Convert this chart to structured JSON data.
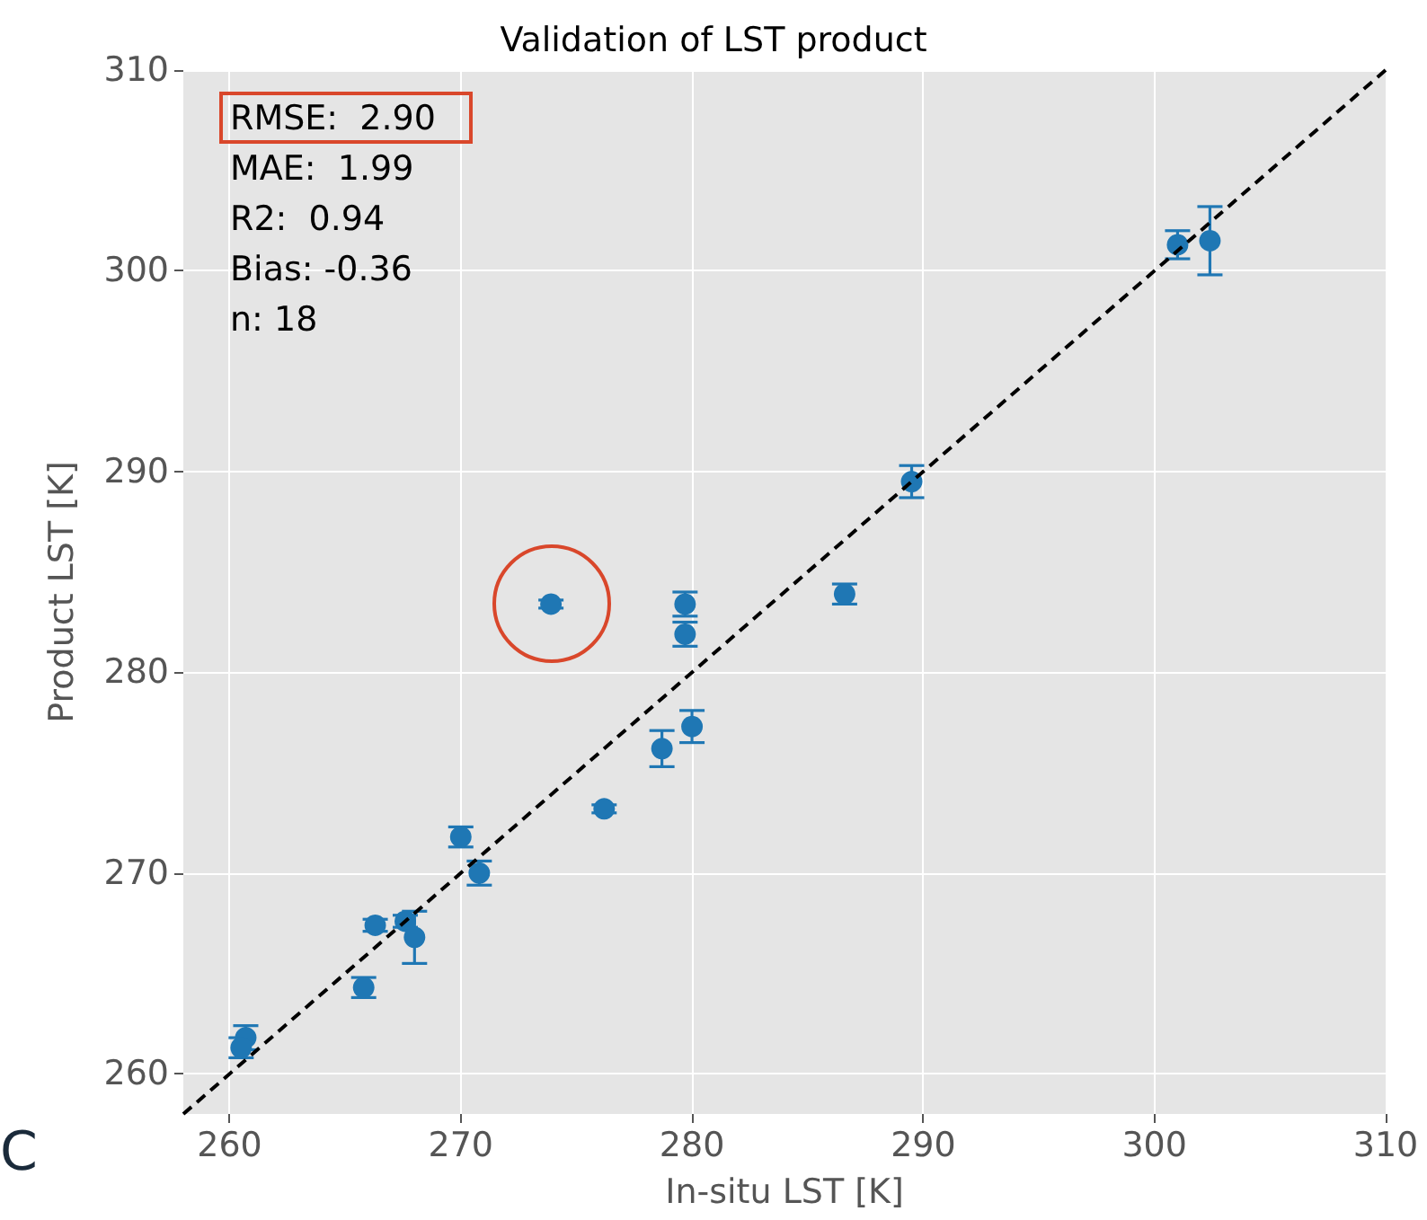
{
  "chart_data": {
    "type": "scatter",
    "title": "Validation of LST product",
    "xlabel": "In-situ LST [K]",
    "ylabel": "Product LST [K]",
    "annotations": [
      "RMSE:  2.90",
      "MAE:  1.99",
      "R2:  0.94",
      "Bias: -0.36",
      "n: 18",
      "C"
    ],
    "xlim": [
      258,
      310
    ],
    "ylim": [
      258,
      310
    ],
    "xticks": [
      260,
      270,
      280,
      290,
      300,
      310
    ],
    "yticks": [
      260,
      270,
      280,
      290,
      300,
      310
    ],
    "grid": true,
    "marker": "circle",
    "series": [
      {
        "color": "#1f77b4",
        "x": [
          260.7,
          260.5,
          265.8,
          266.3,
          267.6,
          268.0,
          270.0,
          270.8,
          273.9,
          276.2,
          278.7,
          279.7,
          279.7,
          280.0,
          286.6,
          289.5,
          301.0,
          302.4
        ],
        "values": [
          261.8,
          261.3,
          264.3,
          267.4,
          267.6,
          266.8,
          271.8,
          270.0,
          283.4,
          273.2,
          276.2,
          283.4,
          281.9,
          277.3,
          283.9,
          289.5,
          301.3,
          301.5
        ],
        "errors": [
          0.6,
          0.5,
          0.5,
          0.3,
          0.3,
          1.3,
          0.5,
          0.6,
          0.2,
          0.2,
          0.9,
          0.6,
          0.6,
          0.8,
          0.5,
          0.8,
          0.7,
          1.7
        ]
      },
      {
        "type": "line",
        "color": "#000000",
        "line_style": "dashed",
        "marker": "none",
        "x": [
          258,
          310
        ],
        "values": [
          258,
          310
        ]
      }
    ]
  }
}
